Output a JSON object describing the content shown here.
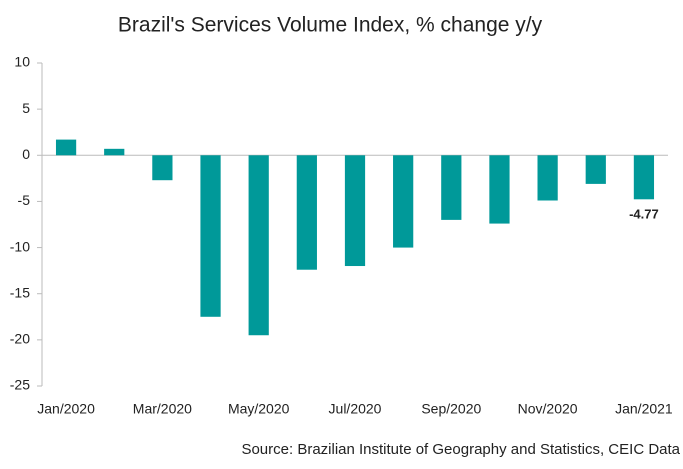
{
  "chart_data": {
    "type": "bar",
    "title": "Brazil's Services Volume Index, % change y/y",
    "source": "Source: Brazilian Institute of Geography and Statistics, CEIC Data",
    "categories": [
      "Jan/2020",
      null,
      "Mar/2020",
      null,
      "May/2020",
      null,
      "Jul/2020",
      null,
      "Sep/2020",
      null,
      "Nov/2020",
      null,
      "Jan/2021"
    ],
    "values": [
      1.7,
      0.7,
      -2.7,
      -17.5,
      -19.5,
      -12.4,
      -12.0,
      -10.0,
      -7.0,
      -7.4,
      -4.9,
      -3.1,
      -4.77
    ],
    "color": "#009999",
    "data_label": "last",
    "ylim": [
      -25,
      10
    ],
    "yticks": [
      -25,
      -20,
      -15,
      -10,
      -5,
      0,
      5,
      10
    ],
    "grid": false
  }
}
